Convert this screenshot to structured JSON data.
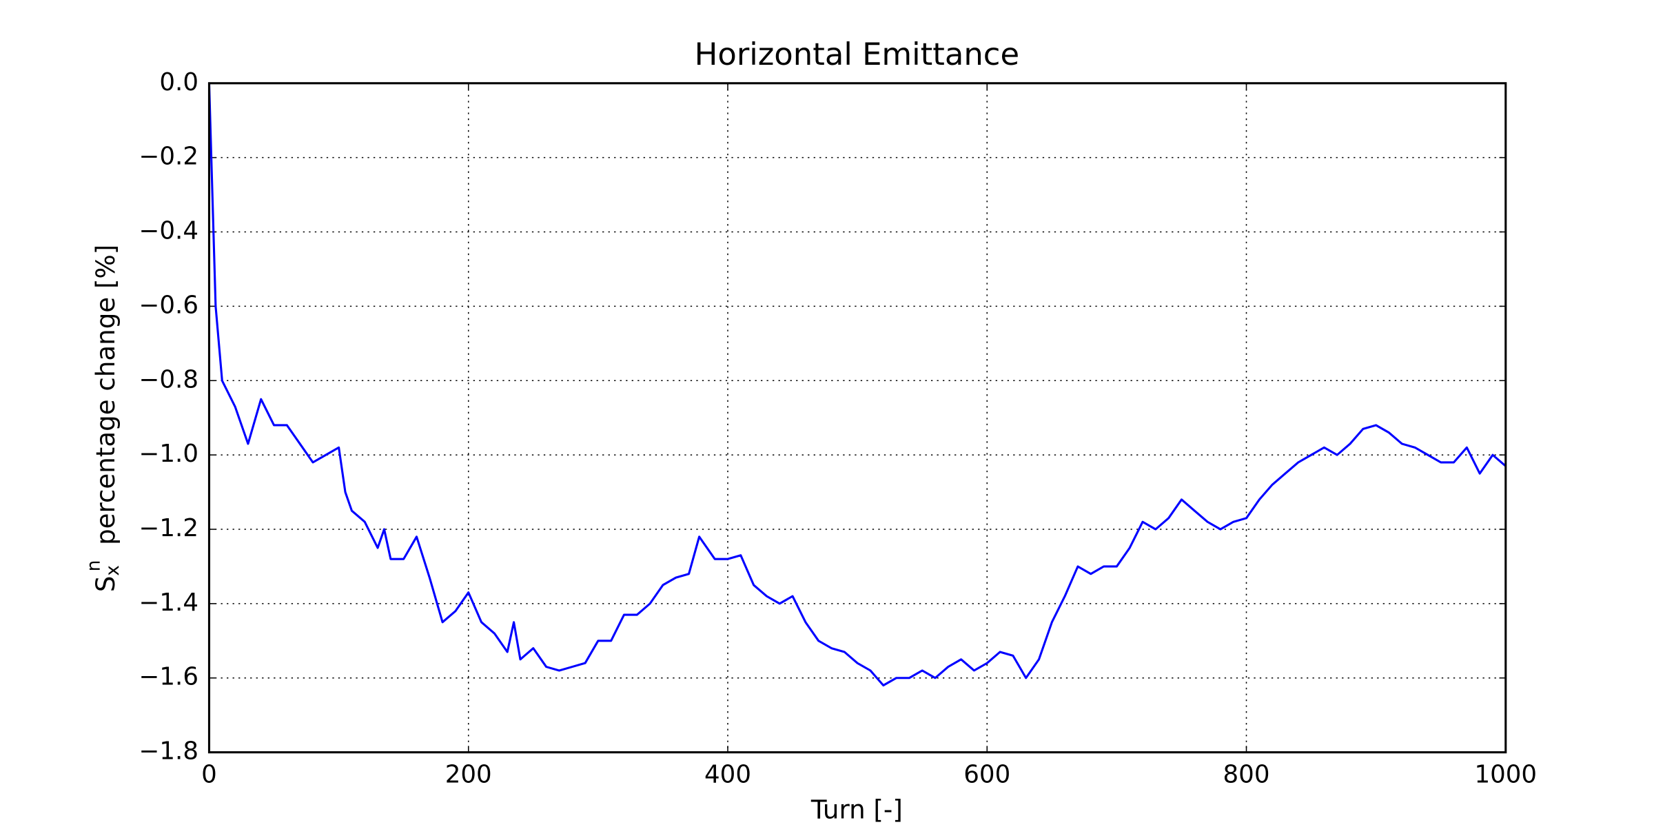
{
  "chart_data": {
    "type": "line",
    "title": "Horizontal Emittance",
    "x_label": "Turn [-]",
    "y_label_parts": {
      "base": "S",
      "sub": "x",
      "sup": "n",
      "text": "percentage change [%]"
    },
    "xlim": [
      0,
      1000
    ],
    "ylim": [
      -1.8,
      0
    ],
    "xticks": [
      0,
      200,
      400,
      600,
      800,
      1000
    ],
    "yticks": [
      {
        "value": 0,
        "label": "0.0"
      },
      {
        "value": -0.2,
        "label": "−0.2"
      },
      {
        "value": -0.4,
        "label": "−0.4"
      },
      {
        "value": -0.6,
        "label": "−0.6"
      },
      {
        "value": -0.8,
        "label": "−0.8"
      },
      {
        "value": -1.0,
        "label": "−1.0"
      },
      {
        "value": -1.2,
        "label": "−1.2"
      },
      {
        "value": -1.4,
        "label": "−1.4"
      },
      {
        "value": -1.6,
        "label": "−1.6"
      },
      {
        "value": -1.8,
        "label": "−1.8"
      }
    ],
    "grid": true,
    "x": [
      0,
      5,
      10,
      20,
      30,
      40,
      50,
      60,
      70,
      80,
      90,
      100,
      105,
      110,
      120,
      130,
      135,
      140,
      150,
      160,
      170,
      180,
      190,
      200,
      210,
      220,
      230,
      235,
      240,
      250,
      260,
      270,
      280,
      290,
      300,
      310,
      320,
      330,
      340,
      350,
      360,
      370,
      378,
      390,
      400,
      410,
      420,
      430,
      440,
      450,
      460,
      470,
      480,
      490,
      500,
      510,
      520,
      530,
      540,
      550,
      560,
      570,
      580,
      590,
      600,
      610,
      620,
      630,
      640,
      650,
      660,
      670,
      680,
      690,
      700,
      710,
      720,
      730,
      740,
      750,
      760,
      770,
      780,
      790,
      800,
      810,
      820,
      830,
      840,
      850,
      860,
      870,
      880,
      890,
      900,
      910,
      920,
      930,
      940,
      950,
      960,
      970,
      980,
      990,
      1000
    ],
    "series": [
      {
        "name": "Horizontal emittance",
        "color": "#0000ff",
        "values": [
          0,
          -0.6,
          -0.8,
          -0.87,
          -0.97,
          -0.85,
          -0.92,
          -0.92,
          -0.97,
          -1.02,
          -1.0,
          -0.98,
          -1.1,
          -1.15,
          -1.18,
          -1.25,
          -1.2,
          -1.28,
          -1.28,
          -1.22,
          -1.33,
          -1.45,
          -1.42,
          -1.37,
          -1.45,
          -1.48,
          -1.53,
          -1.45,
          -1.55,
          -1.52,
          -1.57,
          -1.58,
          -1.57,
          -1.56,
          -1.5,
          -1.5,
          -1.43,
          -1.43,
          -1.4,
          -1.35,
          -1.33,
          -1.32,
          -1.22,
          -1.28,
          -1.28,
          -1.27,
          -1.35,
          -1.38,
          -1.4,
          -1.38,
          -1.45,
          -1.5,
          -1.52,
          -1.53,
          -1.56,
          -1.58,
          -1.62,
          -1.6,
          -1.6,
          -1.58,
          -1.6,
          -1.57,
          -1.55,
          -1.58,
          -1.56,
          -1.53,
          -1.54,
          -1.6,
          -1.55,
          -1.45,
          -1.38,
          -1.3,
          -1.32,
          -1.3,
          -1.3,
          -1.25,
          -1.18,
          -1.2,
          -1.17,
          -1.12,
          -1.15,
          -1.18,
          -1.2,
          -1.18,
          -1.17,
          -1.12,
          -1.08,
          -1.05,
          -1.02,
          -1.0,
          -0.98,
          -1.0,
          -0.97,
          -0.93,
          -0.92,
          -0.94,
          -0.97,
          -0.98,
          -1.0,
          -1.02,
          -1.02,
          -0.98,
          -1.05,
          -1.0,
          -1.03
        ]
      }
    ]
  }
}
